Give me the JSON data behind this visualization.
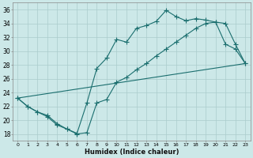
{
  "xlabel": "Humidex (Indice chaleur)",
  "bg_color": "#cce8e8",
  "grid_color": "#aacccc",
  "line_color": "#1a6e6e",
  "xlim": [
    -0.5,
    23.5
  ],
  "ylim": [
    17.0,
    37.0
  ],
  "xticks": [
    0,
    1,
    2,
    3,
    4,
    5,
    6,
    7,
    8,
    9,
    10,
    11,
    12,
    13,
    14,
    15,
    16,
    17,
    18,
    19,
    20,
    21,
    22,
    23
  ],
  "yticks": [
    18,
    20,
    22,
    24,
    26,
    28,
    30,
    32,
    34,
    36
  ],
  "line1_x": [
    0,
    1,
    2,
    3,
    4,
    5,
    6,
    7,
    8,
    9,
    10,
    11,
    12,
    13,
    14,
    15,
    16,
    17,
    18,
    19,
    20,
    21,
    22,
    23
  ],
  "line1_y": [
    23.2,
    22.0,
    21.2,
    20.7,
    19.5,
    18.7,
    18.1,
    22.5,
    27.5,
    29.0,
    31.7,
    31.3,
    33.3,
    33.7,
    34.3,
    35.9,
    35.0,
    34.4,
    34.7,
    34.5,
    34.2,
    31.0,
    30.3,
    28.2
  ],
  "line2_x": [
    0,
    1,
    2,
    3,
    4,
    5,
    6,
    7,
    8,
    9,
    10,
    11,
    12,
    13,
    14,
    15,
    16,
    17,
    18,
    19,
    20,
    21,
    22,
    23
  ],
  "line2_y": [
    23.2,
    22.0,
    21.2,
    20.5,
    19.3,
    18.7,
    18.0,
    18.2,
    22.5,
    23.0,
    25.5,
    26.2,
    27.3,
    28.2,
    29.3,
    30.3,
    31.3,
    32.3,
    33.3,
    34.0,
    34.2,
    34.0,
    31.0,
    28.2
  ],
  "line3_x": [
    0,
    23
  ],
  "line3_y": [
    23.2,
    28.2
  ],
  "marker_size": 2.5,
  "line_width": 0.8
}
